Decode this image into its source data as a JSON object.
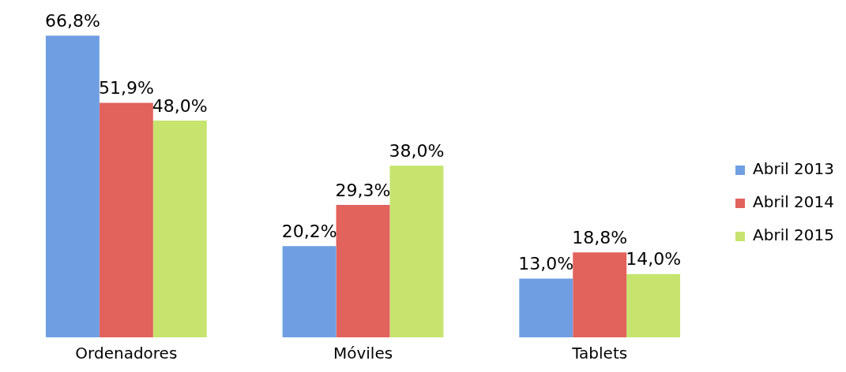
{
  "chart_data": {
    "type": "bar",
    "categories": [
      "Ordenadores",
      "Móviles",
      "Tablets"
    ],
    "series": [
      {
        "name": "Abril 2013",
        "color": "#6f9fe2",
        "values": [
          66.8,
          20.2,
          13.0
        ],
        "value_labels": [
          "66,8%",
          "20,2%",
          "13,0%"
        ]
      },
      {
        "name": "Abril 2014",
        "color": "#e2625c",
        "values": [
          51.9,
          29.3,
          18.8
        ],
        "value_labels": [
          "51,9%",
          "29,3%",
          "18,8%"
        ]
      },
      {
        "name": "Abril 2015",
        "color": "#c6e46e",
        "values": [
          48.0,
          38.0,
          14.0
        ],
        "value_labels": [
          "48,0%",
          "38,0%",
          "14,0%"
        ]
      }
    ],
    "ylim": [
      0,
      67
    ],
    "legend": "right",
    "grid": false
  }
}
